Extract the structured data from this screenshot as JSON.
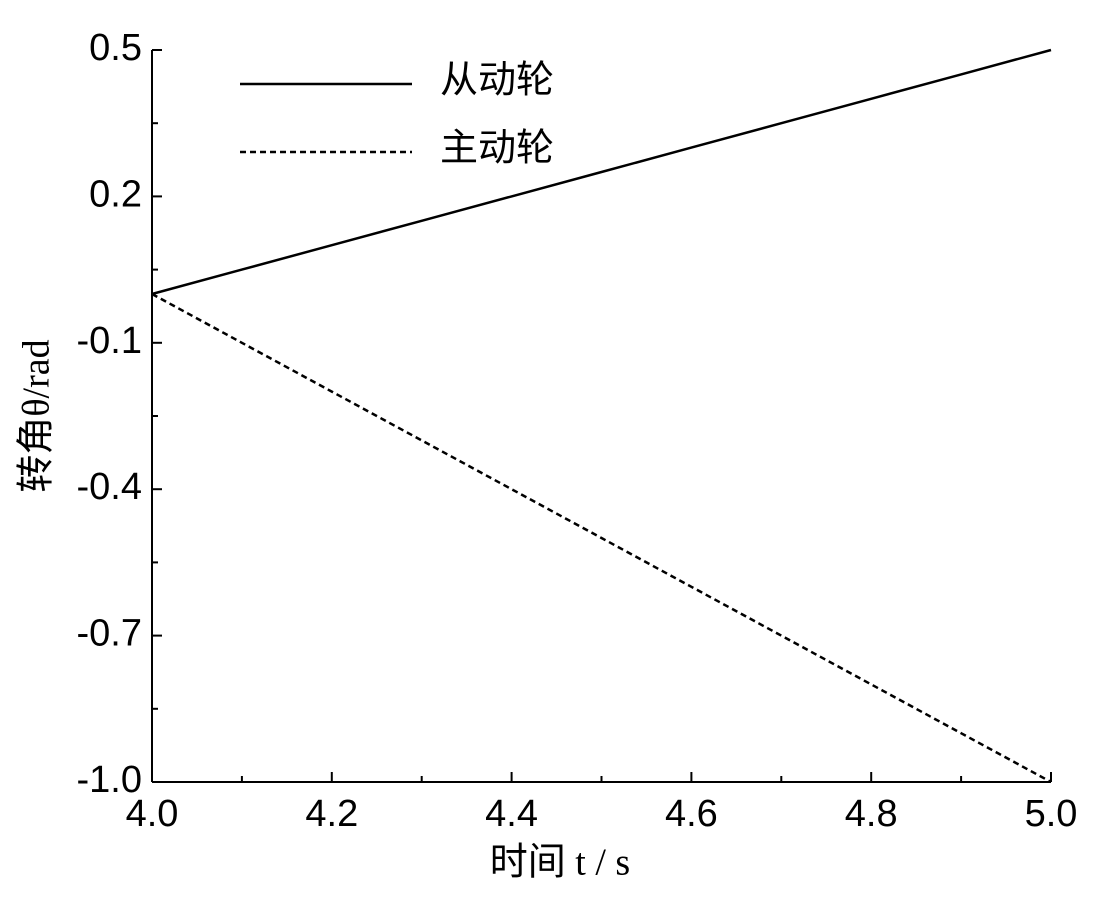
{
  "chart_data": {
    "type": "line",
    "x_label": "时间 t / s",
    "y_label": "转角θ/rad",
    "x": [
      4.0,
      4.1,
      4.2,
      4.3,
      4.4,
      4.5,
      4.6,
      4.7,
      4.8,
      4.9,
      5.0
    ],
    "series": [
      {
        "name": "从动轮",
        "color": "#000000",
        "dash": "solid",
        "values": [
          0.0,
          0.05,
          0.1,
          0.15,
          0.2,
          0.25,
          0.3,
          0.35,
          0.4,
          0.45,
          0.5
        ]
      },
      {
        "name": "主动轮",
        "color": "#000000",
        "dash": "dashed",
        "values": [
          0.0,
          -0.1,
          -0.2,
          -0.3,
          -0.4,
          -0.5,
          -0.6,
          -0.7,
          -0.8,
          -0.9,
          -1.0
        ]
      }
    ],
    "xlim": [
      4.0,
      5.0
    ],
    "ylim": [
      -1.0,
      0.5
    ],
    "xticks": [
      {
        "value": 4,
        "label": "4.0"
      },
      4.2,
      4.4,
      4.6,
      4.8,
      {
        "value": 5,
        "label": "5.0"
      }
    ],
    "yticks": [
      0.5,
      0.2,
      -0.1,
      -0.4,
      -0.7,
      {
        "value": -1,
        "label": "-1.0"
      }
    ],
    "xminorticks": [
      4.1,
      4.3,
      4.5,
      4.7,
      4.9
    ],
    "yminorticks": [
      0.35,
      0.05,
      -0.25,
      -0.55,
      -0.85
    ],
    "legend": "upper-left",
    "grid": false
  }
}
